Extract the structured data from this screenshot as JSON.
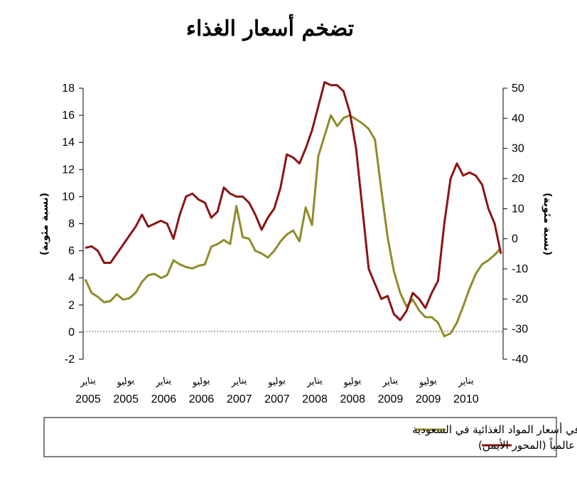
{
  "chart_data": {
    "type": "line",
    "title": "تضخم أسعار الغذاء",
    "ylabel_left": "(نسبة مئوية)",
    "ylabel_right": "(نسبة مئوية)",
    "ylim_left": [
      -2,
      18
    ],
    "yticks_left": [
      -2,
      0,
      2,
      4,
      6,
      8,
      10,
      12,
      14,
      16,
      18
    ],
    "ylim_right": [
      -40,
      50
    ],
    "yticks_right": [
      -40,
      -30,
      -20,
      -10,
      0,
      10,
      20,
      30,
      40,
      50
    ],
    "x_tick_labels": [
      {
        "month": "يناير",
        "year": "2005"
      },
      {
        "month": "يوليو",
        "year": "2005"
      },
      {
        "month": "يناير",
        "year": "2006"
      },
      {
        "month": "يوليو",
        "year": "2006"
      },
      {
        "month": "يناير",
        "year": "2007"
      },
      {
        "month": "يوليو",
        "year": "2007"
      },
      {
        "month": "يناير",
        "year": "2008"
      },
      {
        "month": "يوليو",
        "year": "2008"
      },
      {
        "month": "يناير",
        "year": "2009"
      },
      {
        "month": "يوليو",
        "year": "2009"
      },
      {
        "month": "يناير",
        "year": "2010"
      }
    ],
    "legend_placement": "bottom",
    "series": [
      {
        "name": "التضخم في أسعار المواد الغذائية في السعودية",
        "axis": "left",
        "color": "#8f8c2a",
        "values": [
          3.9,
          2.9,
          2.6,
          2.2,
          2.3,
          2.8,
          2.4,
          2.5,
          2.9,
          3.7,
          4.2,
          4.3,
          4.0,
          4.2,
          5.3,
          5.0,
          4.8,
          4.7,
          4.9,
          5.0,
          6.3,
          6.5,
          6.8,
          6.5,
          9.3,
          7.0,
          6.9,
          6.0,
          5.8,
          5.5,
          6.0,
          6.7,
          7.2,
          7.5,
          6.7,
          9.2,
          7.9,
          13.0,
          14.5,
          16.0,
          15.2,
          15.8,
          16.0,
          15.7,
          15.4,
          15.0,
          14.2,
          10.5,
          7.0,
          4.5,
          2.9,
          1.9,
          2.4,
          1.6,
          1.1,
          1.1,
          0.7,
          -0.3,
          -0.1,
          0.7,
          1.9,
          3.2,
          4.3,
          5.0,
          5.3,
          5.7,
          6.2
        ]
      },
      {
        "name": "التضخم في أسعار المواد الغذائية عالمياً (المحور الأيمن)",
        "axis": "right",
        "color": "#8b1414",
        "values": [
          -3,
          -2.5,
          -4,
          -8,
          -8,
          -5,
          -2,
          1,
          4,
          8,
          4,
          5,
          6,
          5,
          0,
          8,
          14,
          15,
          13,
          12,
          7,
          9,
          17,
          15,
          14,
          14,
          12,
          8,
          3,
          7,
          10,
          17,
          28,
          27,
          25,
          30,
          36,
          44,
          52,
          51,
          51,
          49,
          42,
          30,
          10,
          -10,
          -15,
          -20,
          -19,
          -25,
          -27,
          -24,
          -18,
          -20,
          -23,
          -18,
          -14,
          5,
          20,
          25,
          21,
          22,
          21,
          18,
          10,
          5,
          -5
        ]
      }
    ]
  },
  "legend": {
    "items": [
      {
        "label": "التضخم في أسعار المواد الغذائية في السعودية",
        "color": "#8f8c2a"
      },
      {
        "label": "التضخم  في أسعار المواد الغذائية عالمياً (المحور الأيمن)",
        "color": "#8b1414"
      }
    ]
  }
}
